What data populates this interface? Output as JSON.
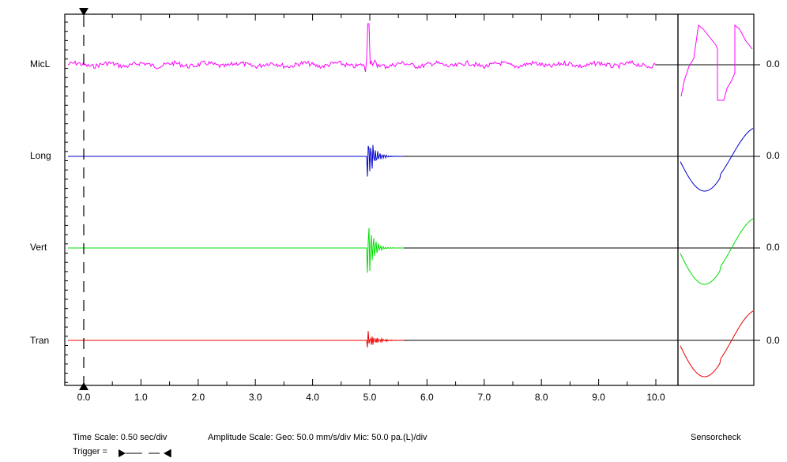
{
  "chart_data": {
    "type": "line",
    "x_ticks": [
      "0.0",
      "1.0",
      "2.0",
      "3.0",
      "4.0",
      "5.0",
      "6.0",
      "7.0",
      "8.0",
      "9.0",
      "10.0"
    ],
    "xlim": [
      0,
      10
    ],
    "trigger_time": 0.0,
    "series": [
      {
        "name": "MicL",
        "color": "#ff00ff",
        "value": "0.0"
      },
      {
        "name": "Long",
        "color": "#0000cc",
        "value": "0.0"
      },
      {
        "name": "Vert",
        "color": "#00dd00",
        "value": "0.0"
      },
      {
        "name": "Tran",
        "color": "#ee0000",
        "value": "0.0"
      }
    ]
  },
  "footer": {
    "time_scale": "Time Scale: 0.50 sec/div",
    "amplitude_scale": "Amplitude Scale: Geo: 50.0 mm/s/div Mic: 50.0 pa.(L)/div",
    "trigger_label": "Trigger ="
  },
  "sensorcheck_label": "Sensorcheck"
}
